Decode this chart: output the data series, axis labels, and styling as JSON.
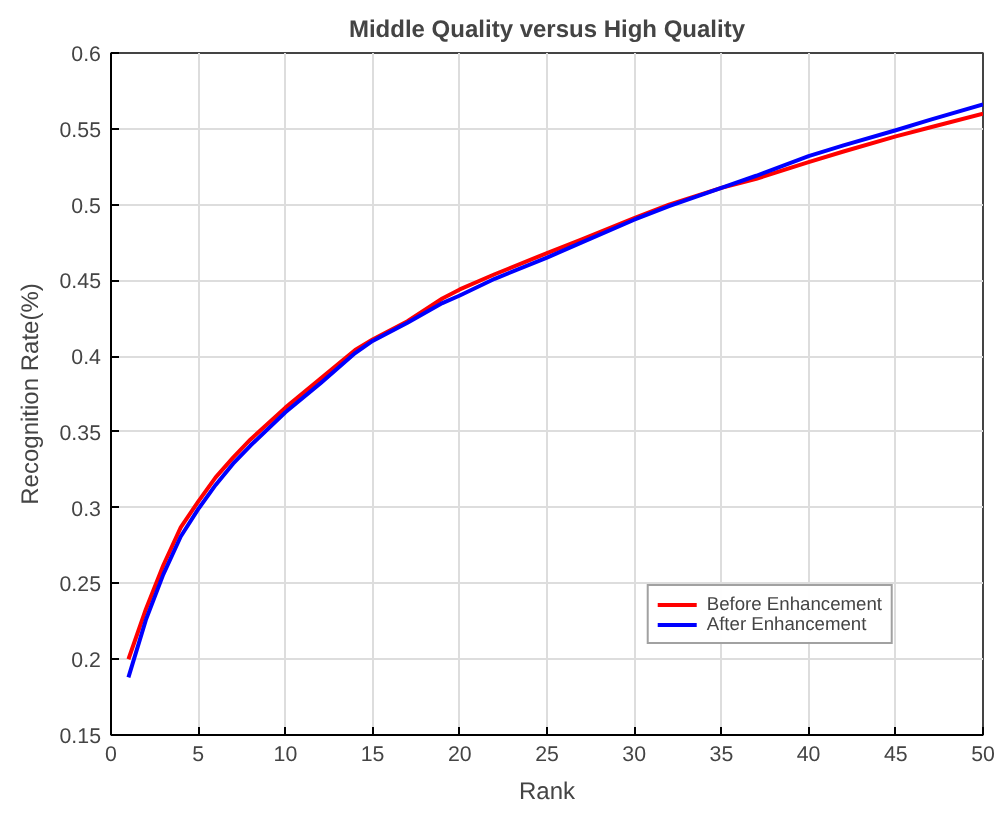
{
  "chart_data": {
    "type": "line",
    "title": "Middle Quality versus High Quality",
    "xlabel": "Rank",
    "ylabel": "Recognition Rate(%)",
    "x": [
      1,
      2,
      3,
      4,
      5,
      6,
      7,
      8,
      10,
      12,
      14,
      15,
      17,
      19,
      20,
      22,
      25,
      27,
      30,
      32,
      35,
      37,
      40,
      42,
      45,
      47,
      50
    ],
    "series": [
      {
        "name": "Before Enhancement",
        "color": "#ff0000",
        "values": [
          0.2,
          0.233,
          0.262,
          0.287,
          0.304,
          0.32,
          0.333,
          0.345,
          0.366,
          0.385,
          0.404,
          0.411,
          0.423,
          0.438,
          0.444,
          0.454,
          0.468,
          0.477,
          0.491,
          0.5,
          0.511,
          0.517,
          0.528,
          0.535,
          0.545,
          0.551,
          0.56
        ]
      },
      {
        "name": "After Enhancement",
        "color": "#0000ff",
        "values": [
          0.188,
          0.226,
          0.256,
          0.281,
          0.299,
          0.315,
          0.329,
          0.341,
          0.363,
          0.382,
          0.402,
          0.41,
          0.422,
          0.435,
          0.44,
          0.451,
          0.465,
          0.475,
          0.49,
          0.499,
          0.511,
          0.519,
          0.532,
          0.539,
          0.549,
          0.556,
          0.566
        ]
      }
    ],
    "xlim": [
      0,
      50
    ],
    "ylim": [
      0.15,
      0.6
    ],
    "xticks": [
      0,
      5,
      10,
      15,
      20,
      25,
      30,
      35,
      40,
      45,
      50
    ],
    "yticks": [
      0.15,
      0.2,
      0.25,
      0.3,
      0.35,
      0.4,
      0.45,
      0.5,
      0.55,
      0.6
    ],
    "grid": true,
    "legend": "bottom right",
    "marker": "none",
    "line_style": "solid"
  }
}
